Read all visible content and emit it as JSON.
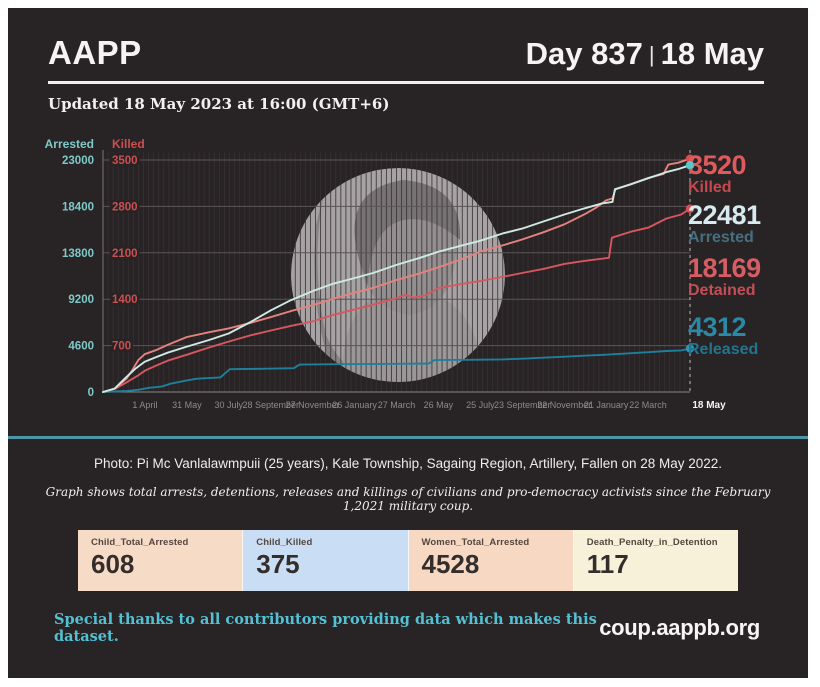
{
  "header": {
    "brand": "AAPP",
    "day_label": "Day 837",
    "separator": "|",
    "date_label": "18 May"
  },
  "updated_line": "Updated 18 May 2023 at 16:00 (GMT+6)",
  "chart_data": {
    "type": "line",
    "title": "Total arrests, detentions, releases and killings since the February 1, 2021 coup",
    "left_axis": {
      "label": "Arrested",
      "color": "#7ecac8",
      "max": 23000,
      "ticks": [
        0,
        4600,
        9200,
        13800,
        18400,
        23000
      ]
    },
    "right_axis": {
      "label": "Killed",
      "color": "#cc4f51",
      "max": 3500,
      "ticks": [
        700,
        1400,
        2100,
        2800,
        3500
      ]
    },
    "x_ticks": [
      "1 April",
      "31 May",
      "30 July",
      "28 September",
      "27 November",
      "26 January",
      "27 March",
      "26 May",
      "25 July",
      "23 September",
      "22 November",
      "21 January",
      "22 March"
    ],
    "x_final_tick": "18 May",
    "grid": true,
    "legend_position": "right-endpoint-labels",
    "series": [
      {
        "name": "Released",
        "axis": "left",
        "color": "#1f7f9c",
        "dot": "#2d97b2",
        "final_value": 4312,
        "points": [
          [
            0,
            0
          ],
          [
            0.04,
            100
          ],
          [
            0.06,
            220
          ],
          [
            0.08,
            430
          ],
          [
            0.1,
            540
          ],
          [
            0.115,
            820
          ],
          [
            0.143,
            1150
          ],
          [
            0.16,
            1320
          ],
          [
            0.2,
            1450
          ],
          [
            0.216,
            2260
          ],
          [
            0.28,
            2310
          ],
          [
            0.325,
            2360
          ],
          [
            0.335,
            2720
          ],
          [
            0.4,
            2760
          ],
          [
            0.5,
            2800
          ],
          [
            0.555,
            2830
          ],
          [
            0.565,
            3160
          ],
          [
            0.62,
            3190
          ],
          [
            0.68,
            3230
          ],
          [
            0.714,
            3300
          ],
          [
            0.75,
            3400
          ],
          [
            0.786,
            3500
          ],
          [
            0.82,
            3600
          ],
          [
            0.857,
            3700
          ],
          [
            0.9,
            3850
          ],
          [
            0.929,
            3950
          ],
          [
            0.96,
            4060
          ],
          [
            0.985,
            4120
          ],
          [
            1,
            4312
          ]
        ]
      },
      {
        "name": "Detained",
        "axis": "left",
        "color": "#d6575f",
        "dot": "#dd4b52",
        "final_value": 18169,
        "points": [
          [
            0,
            0
          ],
          [
            0.02,
            300
          ],
          [
            0.04,
            950
          ],
          [
            0.06,
            1650
          ],
          [
            0.071,
            2100
          ],
          [
            0.09,
            2600
          ],
          [
            0.11,
            3100
          ],
          [
            0.143,
            3700
          ],
          [
            0.18,
            4400
          ],
          [
            0.214,
            5000
          ],
          [
            0.25,
            5600
          ],
          [
            0.286,
            6100
          ],
          [
            0.32,
            6550
          ],
          [
            0.357,
            7000
          ],
          [
            0.39,
            7600
          ],
          [
            0.429,
            8200
          ],
          [
            0.46,
            8650
          ],
          [
            0.5,
            9300
          ],
          [
            0.515,
            9650
          ],
          [
            0.53,
            9350
          ],
          [
            0.55,
            9600
          ],
          [
            0.571,
            10300
          ],
          [
            0.61,
            10700
          ],
          [
            0.643,
            11000
          ],
          [
            0.68,
            11400
          ],
          [
            0.714,
            11800
          ],
          [
            0.75,
            12200
          ],
          [
            0.786,
            12700
          ],
          [
            0.82,
            13000
          ],
          [
            0.855,
            13250
          ],
          [
            0.862,
            13300
          ],
          [
            0.867,
            15300
          ],
          [
            0.9,
            15900
          ],
          [
            0.929,
            16300
          ],
          [
            0.96,
            17200
          ],
          [
            0.985,
            17600
          ],
          [
            1,
            18169
          ]
        ]
      },
      {
        "name": "Killed",
        "axis": "right",
        "color": "#e5827f",
        "dot": "#dd4b52",
        "final_value": 3520,
        "points": [
          [
            0,
            0
          ],
          [
            0.02,
            50
          ],
          [
            0.04,
            200
          ],
          [
            0.05,
            330
          ],
          [
            0.06,
            480
          ],
          [
            0.071,
            570
          ],
          [
            0.09,
            630
          ],
          [
            0.11,
            710
          ],
          [
            0.143,
            830
          ],
          [
            0.18,
            900
          ],
          [
            0.214,
            960
          ],
          [
            0.25,
            1040
          ],
          [
            0.286,
            1130
          ],
          [
            0.32,
            1220
          ],
          [
            0.357,
            1310
          ],
          [
            0.39,
            1400
          ],
          [
            0.429,
            1500
          ],
          [
            0.46,
            1570
          ],
          [
            0.5,
            1690
          ],
          [
            0.54,
            1790
          ],
          [
            0.571,
            1880
          ],
          [
            0.61,
            2000
          ],
          [
            0.643,
            2120
          ],
          [
            0.68,
            2210
          ],
          [
            0.714,
            2300
          ],
          [
            0.75,
            2410
          ],
          [
            0.786,
            2530
          ],
          [
            0.82,
            2680
          ],
          [
            0.84,
            2780
          ],
          [
            0.857,
            2890
          ],
          [
            0.868,
            2920
          ],
          [
            0.873,
            3060
          ],
          [
            0.9,
            3140
          ],
          [
            0.929,
            3230
          ],
          [
            0.955,
            3290
          ],
          [
            0.963,
            3430
          ],
          [
            0.98,
            3460
          ],
          [
            1,
            3520
          ]
        ]
      },
      {
        "name": "Arrested",
        "axis": "left",
        "color": "#cfe9e3",
        "dot": "#5ac6ca",
        "final_value": 22481,
        "points": [
          [
            0,
            0
          ],
          [
            0.02,
            350
          ],
          [
            0.04,
            1500
          ],
          [
            0.055,
            2300
          ],
          [
            0.071,
            3000
          ],
          [
            0.09,
            3450
          ],
          [
            0.11,
            3900
          ],
          [
            0.143,
            4500
          ],
          [
            0.18,
            5150
          ],
          [
            0.214,
            5800
          ],
          [
            0.25,
            6900
          ],
          [
            0.286,
            8100
          ],
          [
            0.32,
            9100
          ],
          [
            0.357,
            10000
          ],
          [
            0.39,
            10700
          ],
          [
            0.429,
            11300
          ],
          [
            0.46,
            11800
          ],
          [
            0.5,
            12600
          ],
          [
            0.54,
            13300
          ],
          [
            0.571,
            13900
          ],
          [
            0.61,
            14500
          ],
          [
            0.643,
            15000
          ],
          [
            0.68,
            15700
          ],
          [
            0.714,
            16200
          ],
          [
            0.75,
            16900
          ],
          [
            0.786,
            17600
          ],
          [
            0.82,
            18200
          ],
          [
            0.85,
            18700
          ],
          [
            0.868,
            18850
          ],
          [
            0.872,
            20100
          ],
          [
            0.9,
            20600
          ],
          [
            0.929,
            21200
          ],
          [
            0.96,
            21800
          ],
          [
            0.98,
            22100
          ],
          [
            1,
            22481
          ]
        ]
      }
    ]
  },
  "stats": [
    {
      "value": "3520",
      "label": "Killed",
      "value_color": "#df5a5c",
      "label_color": "#c5494e"
    },
    {
      "value": "22481",
      "label": "Arrested",
      "value_color": "#d6eaf0",
      "label_color": "#44707f"
    },
    {
      "value": "18169",
      "label": "Detained",
      "value_color": "#d75d64",
      "label_color": "#c24f57"
    },
    {
      "value": "4312",
      "label": "Released",
      "value_color": "#2c89a6",
      "label_color": "#237490"
    }
  ],
  "photo_caption": "Photo: Pi Mc Vanlalawmpuii (25 years), Kale Township, Sagaing Region, Artillery, Fallen on 28 May 2022.",
  "graph_note": "Graph shows total arrests, detentions, releases and killings of civilians and pro-democracy activists since the February 1,2021 military coup.",
  "stat_cards": [
    {
      "label": "Child_Total_Arrested",
      "value": "608",
      "bg": "#f6dbc6"
    },
    {
      "label": "Child_Killed",
      "value": "375",
      "bg": "#c9ddf4"
    },
    {
      "label": "Women_Total_Arrested",
      "value": "4528",
      "bg": "#f6d8c3"
    },
    {
      "label": "Death_Penalty_in_Detention",
      "value": "117",
      "bg": "#f8f1d9"
    }
  ],
  "footer": {
    "thanks": "Special thanks to all contributors providing data which makes this dataset.",
    "website": "coup.aappb.org"
  }
}
